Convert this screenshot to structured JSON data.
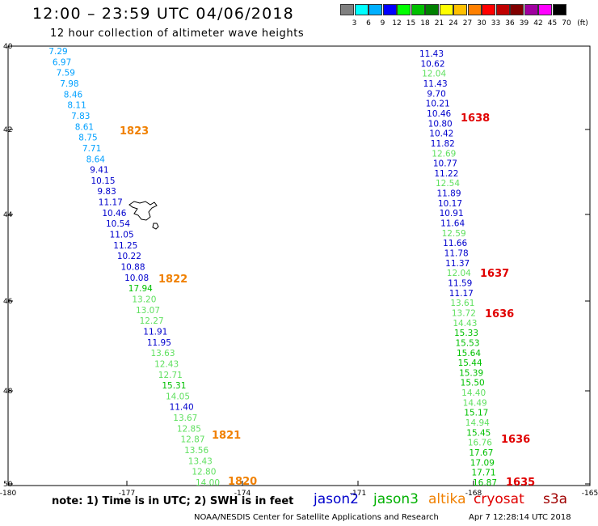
{
  "title": "12:00 – 23:59 UTC 04/06/2018",
  "subtitle": "12 hour collection of altimeter wave heights",
  "colorbar": {
    "units_label": "(ft)",
    "labels": [
      "3",
      "6",
      "9",
      "12",
      "15",
      "18",
      "21",
      "24",
      "27",
      "30",
      "33",
      "36",
      "39",
      "42",
      "45",
      "70"
    ],
    "colors": [
      "#808080",
      "#00ffff",
      "#00b0ff",
      "#0000ff",
      "#00ff00",
      "#00c000",
      "#008000",
      "#ffff00",
      "#ffc000",
      "#ff8000",
      "#ff0000",
      "#c00000",
      "#800000",
      "#a000a0",
      "#ff00ff",
      "#000000"
    ]
  },
  "axes": {
    "lat_labels": [
      "40",
      "42",
      "44",
      "46",
      "48",
      "50"
    ],
    "lon_labels": [
      "-180",
      "-177",
      "-174",
      "-171",
      "-168",
      "-165"
    ]
  },
  "track_colors": {
    "blue": "#0000cc",
    "lightblue": "#00a0ff",
    "green": "#00c000",
    "lightgreen": "#60e060",
    "orange": "#f08000",
    "red": "#e00000"
  },
  "tracks": [
    {
      "name": "west",
      "points": [
        {
          "v": "7.29",
          "c": "lightblue"
        },
        {
          "v": "6.97",
          "c": "lightblue"
        },
        {
          "v": "7.59",
          "c": "lightblue"
        },
        {
          "v": "7.98",
          "c": "lightblue"
        },
        {
          "v": "8.46",
          "c": "lightblue"
        },
        {
          "v": "8.11",
          "c": "lightblue"
        },
        {
          "v": "7.83",
          "c": "lightblue"
        },
        {
          "v": "8.61",
          "c": "lightblue"
        },
        {
          "v": "8.75",
          "c": "lightblue"
        },
        {
          "v": "7.71",
          "c": "lightblue"
        },
        {
          "v": "8.64",
          "c": "lightblue"
        },
        {
          "v": "9.41",
          "c": "blue"
        },
        {
          "v": "10.15",
          "c": "blue"
        },
        {
          "v": "9.83",
          "c": "blue"
        },
        {
          "v": "11.17",
          "c": "blue"
        },
        {
          "v": "10.46",
          "c": "blue"
        },
        {
          "v": "10.54",
          "c": "blue"
        },
        {
          "v": "11.05",
          "c": "blue"
        },
        {
          "v": "11.25",
          "c": "blue"
        },
        {
          "v": "10.22",
          "c": "blue"
        },
        {
          "v": "10.88",
          "c": "blue"
        },
        {
          "v": "10.08",
          "c": "blue"
        },
        {
          "v": "17.94",
          "c": "green"
        },
        {
          "v": "13.20",
          "c": "lightgreen"
        },
        {
          "v": "13.07",
          "c": "lightgreen"
        },
        {
          "v": "12.27",
          "c": "lightgreen"
        },
        {
          "v": "11.91",
          "c": "blue"
        },
        {
          "v": "11.95",
          "c": "blue"
        },
        {
          "v": "13.63",
          "c": "lightgreen"
        },
        {
          "v": "12.43",
          "c": "lightgreen"
        },
        {
          "v": "12.71",
          "c": "lightgreen"
        },
        {
          "v": "15.31",
          "c": "green"
        },
        {
          "v": "14.05",
          "c": "lightgreen"
        },
        {
          "v": "11.40",
          "c": "blue"
        },
        {
          "v": "13.67",
          "c": "lightgreen"
        },
        {
          "v": "12.85",
          "c": "lightgreen"
        },
        {
          "v": "12.87",
          "c": "lightgreen"
        },
        {
          "v": "13.56",
          "c": "lightgreen"
        },
        {
          "v": "13.43",
          "c": "lightgreen"
        },
        {
          "v": "12.80",
          "c": "lightgreen"
        },
        {
          "v": "14.00",
          "c": "lightgreen"
        }
      ]
    },
    {
      "name": "east",
      "points": [
        {
          "v": "11.43",
          "c": "blue"
        },
        {
          "v": "10.62",
          "c": "blue"
        },
        {
          "v": "12.04",
          "c": "lightgreen"
        },
        {
          "v": "11.43",
          "c": "blue"
        },
        {
          "v": "9.70",
          "c": "blue"
        },
        {
          "v": "10.21",
          "c": "blue"
        },
        {
          "v": "10.46",
          "c": "blue"
        },
        {
          "v": "10.80",
          "c": "blue"
        },
        {
          "v": "10.42",
          "c": "blue"
        },
        {
          "v": "11.82",
          "c": "blue"
        },
        {
          "v": "12.69",
          "c": "lightgreen"
        },
        {
          "v": "10.77",
          "c": "blue"
        },
        {
          "v": "11.22",
          "c": "blue"
        },
        {
          "v": "12.54",
          "c": "lightgreen"
        },
        {
          "v": "11.89",
          "c": "blue"
        },
        {
          "v": "10.17",
          "c": "blue"
        },
        {
          "v": "10.91",
          "c": "blue"
        },
        {
          "v": "11.64",
          "c": "blue"
        },
        {
          "v": "12.59",
          "c": "lightgreen"
        },
        {
          "v": "11.66",
          "c": "blue"
        },
        {
          "v": "11.78",
          "c": "blue"
        },
        {
          "v": "11.37",
          "c": "blue"
        },
        {
          "v": "12.04",
          "c": "lightgreen"
        },
        {
          "v": "11.59",
          "c": "blue"
        },
        {
          "v": "11.17",
          "c": "blue"
        },
        {
          "v": "13.61",
          "c": "lightgreen"
        },
        {
          "v": "13.72",
          "c": "lightgreen"
        },
        {
          "v": "14.43",
          "c": "lightgreen"
        },
        {
          "v": "15.33",
          "c": "green"
        },
        {
          "v": "15.53",
          "c": "green"
        },
        {
          "v": "15.64",
          "c": "green"
        },
        {
          "v": "15.44",
          "c": "green"
        },
        {
          "v": "15.39",
          "c": "green"
        },
        {
          "v": "15.50",
          "c": "green"
        },
        {
          "v": "14.40",
          "c": "lightgreen"
        },
        {
          "v": "14.49",
          "c": "lightgreen"
        },
        {
          "v": "15.17",
          "c": "green"
        },
        {
          "v": "14.94",
          "c": "lightgreen"
        },
        {
          "v": "15.45",
          "c": "green"
        },
        {
          "v": "16.76",
          "c": "lightgreen"
        },
        {
          "v": "17.67",
          "c": "green"
        },
        {
          "v": "17.09",
          "c": "green"
        },
        {
          "v": "17.71",
          "c": "green"
        },
        {
          "v": "16.87",
          "c": "green"
        }
      ]
    }
  ],
  "time_labels": [
    {
      "text": "1823",
      "c": "orange"
    },
    {
      "text": "1822",
      "c": "orange"
    },
    {
      "text": "1821",
      "c": "orange"
    },
    {
      "text": "1820",
      "c": "orange"
    },
    {
      "text": "1638",
      "c": "red"
    },
    {
      "text": "1637",
      "c": "red"
    },
    {
      "text": "1636",
      "c": "red"
    },
    {
      "text": "1636",
      "c": "red"
    },
    {
      "text": "1635",
      "c": "red"
    }
  ],
  "legend": [
    {
      "label": "jason2",
      "color": "#0000cc"
    },
    {
      "label": "jason3",
      "color": "#00b000"
    },
    {
      "label": "altika",
      "color": "#f08000"
    },
    {
      "label": "cryosat",
      "color": "#e00000"
    },
    {
      "label": "s3a",
      "color": "#a00000"
    }
  ],
  "note": "note:  1) Time is in UTC;  2) SWH is in feet",
  "credit": "NOAA/NESDIS Center for Satellite Applications and Research",
  "timestamp": "Apr  7 12:28:14 UTC 2018"
}
